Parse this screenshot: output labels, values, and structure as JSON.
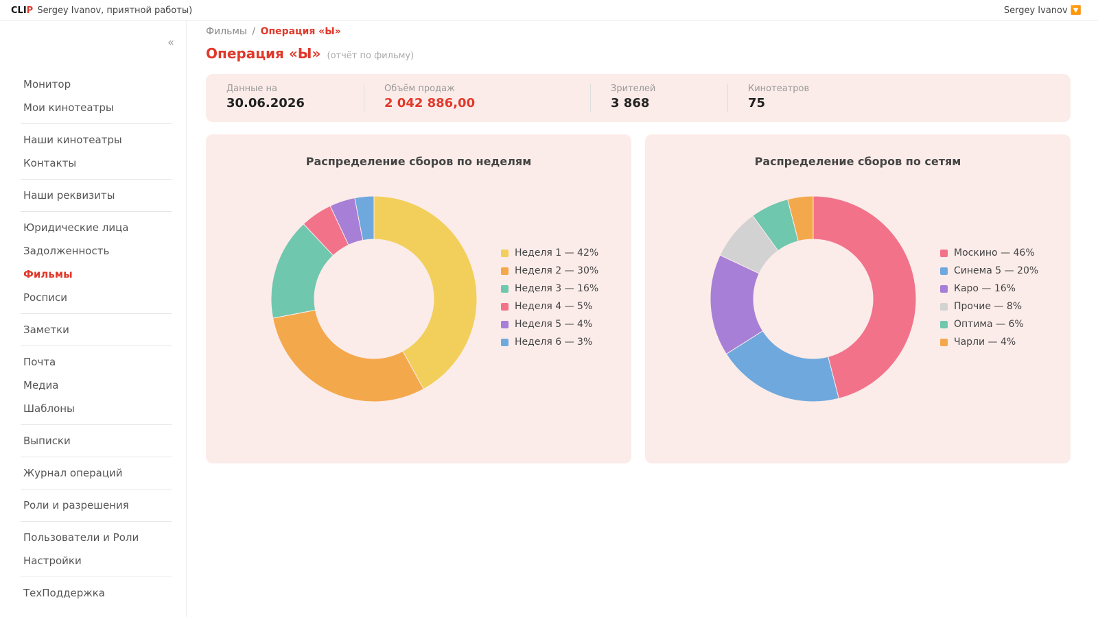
{
  "topbar": {
    "logo_main": "CLI",
    "logo_accent": "P",
    "greeting": "Sergey Ivanov, приятной работы)",
    "user": "Sergey Ivanov 🔽"
  },
  "sidebar": {
    "collapse": "«",
    "groups": [
      [
        "Монитор",
        "Мои кинотеатры"
      ],
      [
        "Наши кинотеатры",
        "Контакты"
      ],
      [
        "Наши реквизиты"
      ],
      [
        "Юридические лица",
        "Задолженность",
        "Фильмы",
        "Росписи"
      ],
      [
        "Заметки"
      ],
      [
        "Почта",
        "Медиа",
        "Шаблоны"
      ],
      [
        "Выписки"
      ],
      [
        "Журнал операций"
      ],
      [
        "Роли и разрешения"
      ],
      [
        "Пользователи и Роли",
        "Настройки"
      ],
      [
        "ТехПоддержка"
      ]
    ],
    "active": "Фильмы"
  },
  "breadcrumb": {
    "parent": "Фильмы",
    "sep": "/",
    "current": "Операция «Ы»"
  },
  "page": {
    "title": "Операция «Ы»",
    "subtitle": "(отчёт по фильму)"
  },
  "stats": {
    "date_label": "Данные на",
    "date_value": "30.06.2026",
    "sales_label": "Объём продаж",
    "sales_value": "2 042 886,00",
    "viewers_label": "Зрителей",
    "viewers_value": "3 868",
    "cinemas_label": "Кинотеатров",
    "cinemas_value": "75"
  },
  "chart_data": [
    {
      "type": "pie",
      "title": "Распределение сборов по неделям",
      "categories": [
        "Неделя 1",
        "Неделя 2",
        "Неделя 3",
        "Неделя 4",
        "Неделя 5",
        "Неделя 6"
      ],
      "values": [
        42,
        30,
        16,
        5,
        4,
        3
      ],
      "legend_labels": [
        "Неделя 1 — 42%",
        "Неделя 2 — 30%",
        "Неделя 3 — 16%",
        "Неделя 4 — 5%",
        "Неделя 5 — 4%",
        "Неделя 6 — 3%"
      ],
      "colors": [
        "#f2cf5b",
        "#f4a84c",
        "#6fc7ae",
        "#f2728a",
        "#a77fd6",
        "#6fa8dd"
      ],
      "legend": "right"
    },
    {
      "type": "pie",
      "title": "Распределение сборов по сетям",
      "categories": [
        "Москино",
        "Синема 5",
        "Каро",
        "Прочие",
        "Оптима",
        "Чарли"
      ],
      "values": [
        46,
        20,
        16,
        8,
        6,
        4
      ],
      "legend_labels": [
        "Москино — 46%",
        "Синема 5 — 20%",
        "Каро — 16%",
        "Прочие — 8%",
        "Оптима — 6%",
        "Чарли — 4%"
      ],
      "colors": [
        "#f2728a",
        "#6fa8dd",
        "#a77fd6",
        "#d2d2d2",
        "#6fc7ae",
        "#f4a84c"
      ],
      "legend": "right"
    }
  ]
}
